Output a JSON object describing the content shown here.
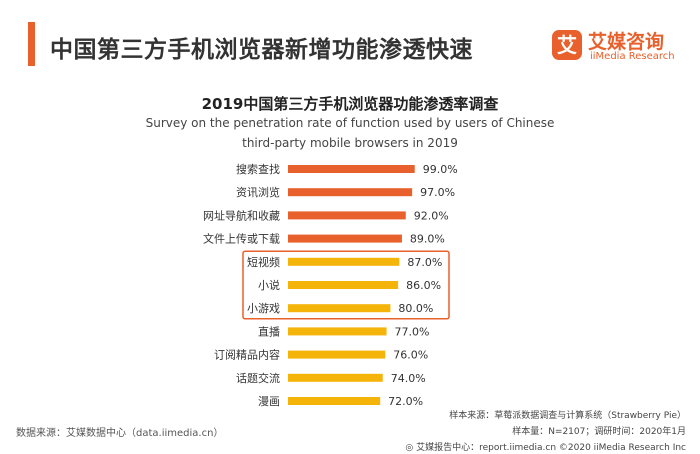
{
  "header": {
    "title": "中国第三方手机浏览器新增功能渗透快速",
    "logo_mark": "艾",
    "logo_cn": "艾媒咨询",
    "logo_en": "iiMedia Research"
  },
  "colors": {
    "accent": "#e8602c",
    "bar_top": "#e8602c",
    "bar_rest": "#f5b40a",
    "highlight": "#e8602c"
  },
  "chart_data": {
    "type": "bar",
    "orientation": "horizontal",
    "title": "2019中国第三方手机浏览器功能渗透率调查",
    "subtitle_line1": "Survey on the penetration rate of function used by users of Chinese",
    "subtitle_line2": "third-party mobile browsers in 2019",
    "categories": [
      "搜索查找",
      "资讯浏览",
      "网址导航和收藏",
      "文件上传或下载",
      "短视频",
      "小说",
      "小游戏",
      "直播",
      "订阅精品内容",
      "话题交流",
      "漫画"
    ],
    "values": [
      99.0,
      97.0,
      92.0,
      89.0,
      87.0,
      86.0,
      80.0,
      77.0,
      76.0,
      74.0,
      72.0
    ],
    "value_labels": [
      "99.0%",
      "97.0%",
      "92.0%",
      "89.0%",
      "87.0%",
      "86.0%",
      "80.0%",
      "77.0%",
      "76.0%",
      "74.0%",
      "72.0%"
    ],
    "unit": "%",
    "xlim": [
      0,
      100
    ],
    "color_groups": [
      "top",
      "top",
      "top",
      "top",
      "rest",
      "rest",
      "rest",
      "rest",
      "rest",
      "rest",
      "rest"
    ],
    "highlighted_categories": [
      "短视频",
      "小说",
      "小游戏"
    ]
  },
  "footer": {
    "source_left": "数据来源：艾媒数据中心（data.iimedia.cn）",
    "sample_source": "样本来源：草莓派数据调查与计算系统（Strawberry Pie）",
    "sample_info": "样本量：N=2107；调研时间：2020年1月",
    "report_center": "◎ 艾媒报告中心：report.iimedia.cn  ©2020  iiMedia Research  Inc"
  }
}
